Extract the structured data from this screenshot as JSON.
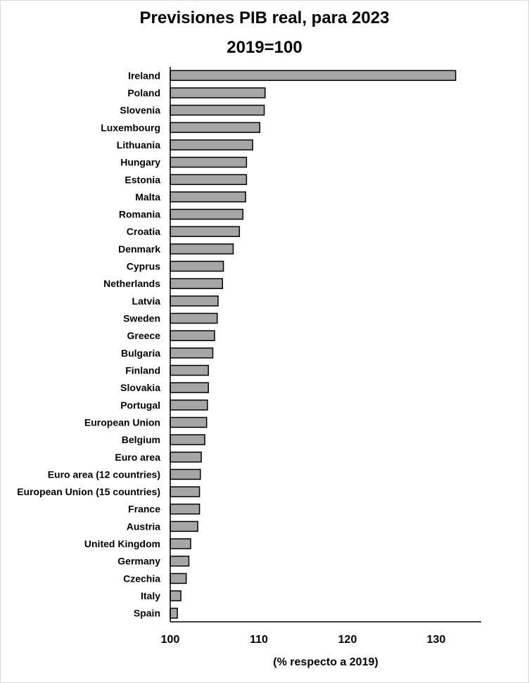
{
  "chart_data": {
    "type": "bar",
    "orientation": "horizontal",
    "title": "Previsiones PIB real, para 2023",
    "subtitle": "2019=100",
    "xlabel": "(% respecto a 2019)",
    "ylabel": "",
    "xlim": [
      100,
      135
    ],
    "xticks": [
      "100",
      "110",
      "120",
      "130"
    ],
    "grid": false,
    "legend": "none",
    "bar_color": "#a6a6a6",
    "bar_edge_color": "#000000",
    "categories": [
      "Ireland",
      "Poland",
      "Slovenia",
      "Luxembourg",
      "Lithuania",
      "Hungary",
      "Estonia",
      "Malta",
      "Romania",
      "Croatia",
      "Denmark",
      "Cyprus",
      "Netherlands",
      "Latvia",
      "Sweden",
      "Greece",
      "Bulgaria",
      "Finland",
      "Slovakia",
      "Portugal",
      "European Union",
      "Belgium",
      "Euro area",
      "Euro area (12 countries)",
      "European Union (15 countries)",
      "France",
      "Austria",
      "United Kingdom",
      "Germany",
      "Czechia",
      "Italy",
      "Spain"
    ],
    "values": [
      132.2,
      110.7,
      110.6,
      110.1,
      109.3,
      108.6,
      108.6,
      108.5,
      108.2,
      107.8,
      107.1,
      106.0,
      105.9,
      105.4,
      105.3,
      105.0,
      104.8,
      104.3,
      104.3,
      104.2,
      104.1,
      103.9,
      103.5,
      103.4,
      103.3,
      103.3,
      103.1,
      102.3,
      102.1,
      101.8,
      101.2,
      100.8
    ]
  }
}
